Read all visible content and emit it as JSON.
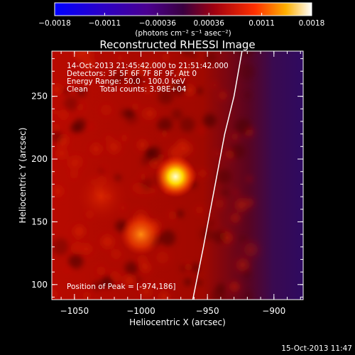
{
  "chart_data": {
    "type": "heatmap",
    "title": "Reconstructed RHESSI Image",
    "xlabel": "Heliocentric X (arcsec)",
    "ylabel": "Heliocentric Y (arcsec)",
    "xlim": [
      -1067,
      -878
    ],
    "ylim": [
      88,
      286
    ],
    "x_ticks": [
      {
        "value": -1050,
        "label": "−1050"
      },
      {
        "value": -1000,
        "label": "−1000"
      },
      {
        "value": -950,
        "label": "−950"
      },
      {
        "value": -900,
        "label": "−900"
      }
    ],
    "y_ticks": [
      {
        "value": 100,
        "label": "100"
      },
      {
        "value": 150,
        "label": "150"
      },
      {
        "value": 200,
        "label": "200"
      },
      {
        "value": 250,
        "label": "250"
      }
    ],
    "colorbar": {
      "range": [
        -0.0018,
        0.0018
      ],
      "ticks": [
        {
          "value": -0.0018,
          "label": "−0.0018"
        },
        {
          "value": -0.0011,
          "label": "−0.0011"
        },
        {
          "value": -0.00036,
          "label": "−0.00036"
        },
        {
          "value": 0.00036,
          "label": "0.00036"
        },
        {
          "value": 0.0011,
          "label": "0.0011"
        },
        {
          "value": 0.0018,
          "label": "0.0018"
        }
      ],
      "units": "(photons cm⁻² s⁻¹ asec⁻²)"
    },
    "sources": [
      {
        "x": -974,
        "y": 186,
        "sigma": 6,
        "amp": 0.0018
      },
      {
        "x": -1000,
        "y": 140,
        "sigma": 6,
        "amp": 0.0011
      },
      {
        "x": -1030,
        "y": 170,
        "sigma": 8,
        "amp": 0.0003
      }
    ],
    "limb_curve": [
      {
        "x": -961,
        "y": 88
      },
      {
        "x": -953,
        "y": 130
      },
      {
        "x": -945,
        "y": 175
      },
      {
        "x": -937,
        "y": 220
      },
      {
        "x": -930,
        "y": 250
      },
      {
        "x": -924,
        "y": 286
      }
    ],
    "annotations": {
      "line1": "14-Oct-2013 21:45:42.000 to 21:51:42.000",
      "line2": "Detectors: 3F 5F 6F 7F 8F 9F, Att 0",
      "line3": "Energy Range: 50.0 - 100.0 keV",
      "line4": "Clean     Total counts: 3.98E+04",
      "peak": "Position of Peak = [-974,186]"
    },
    "footer_timestamp": "15-Oct-2013 11:47"
  }
}
